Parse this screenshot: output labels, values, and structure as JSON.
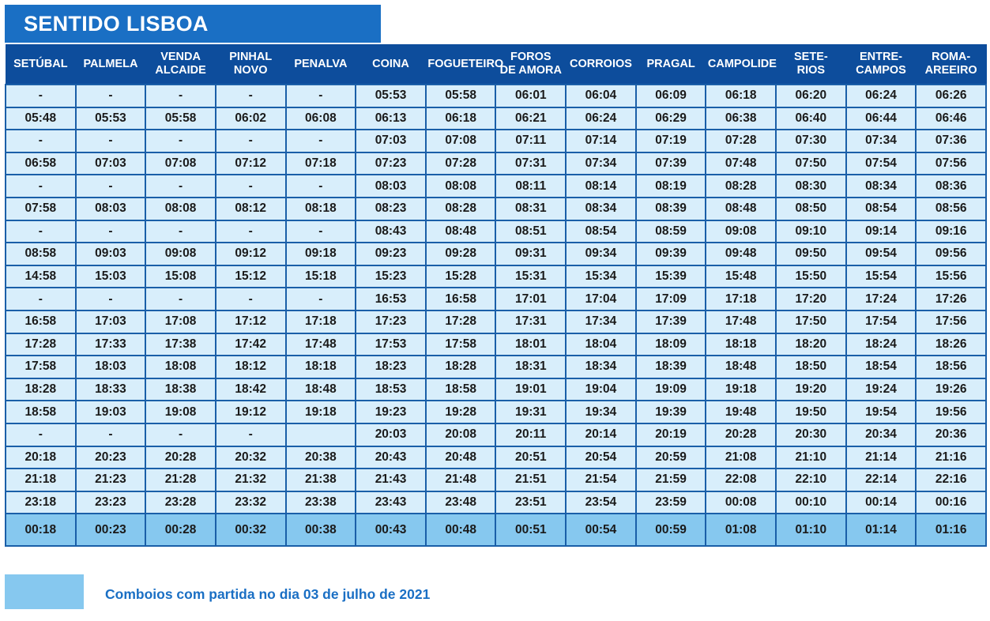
{
  "title": "SENTIDO LISBOA",
  "columns": [
    [
      "SETÚBAL"
    ],
    [
      "PALMELA"
    ],
    [
      "VENDA",
      "ALCAIDE"
    ],
    [
      "PINHAL",
      "NOVO"
    ],
    [
      "PENALVA"
    ],
    [
      "COINA"
    ],
    [
      "FOGUETEIRO"
    ],
    [
      "FOROS",
      "DE AMORA"
    ],
    [
      "CORROIOS"
    ],
    [
      "PRAGAL"
    ],
    [
      "CAMPOLIDE"
    ],
    [
      "SETE-",
      "RIOS"
    ],
    [
      "ENTRE-",
      "CAMPOS"
    ],
    [
      "ROMA-",
      "AREEIRO"
    ]
  ],
  "rows": [
    [
      "-",
      "-",
      "-",
      "-",
      "-",
      "05:53",
      "05:58",
      "06:01",
      "06:04",
      "06:09",
      "06:18",
      "06:20",
      "06:24",
      "06:26"
    ],
    [
      "05:48",
      "05:53",
      "05:58",
      "06:02",
      "06:08",
      "06:13",
      "06:18",
      "06:21",
      "06:24",
      "06:29",
      "06:38",
      "06:40",
      "06:44",
      "06:46"
    ],
    [
      "-",
      "-",
      "-",
      "-",
      "-",
      "07:03",
      "07:08",
      "07:11",
      "07:14",
      "07:19",
      "07:28",
      "07:30",
      "07:34",
      "07:36"
    ],
    [
      "06:58",
      "07:03",
      "07:08",
      "07:12",
      "07:18",
      "07:23",
      "07:28",
      "07:31",
      "07:34",
      "07:39",
      "07:48",
      "07:50",
      "07:54",
      "07:56"
    ],
    [
      "-",
      "-",
      "-",
      "-",
      "-",
      "08:03",
      "08:08",
      "08:11",
      "08:14",
      "08:19",
      "08:28",
      "08:30",
      "08:34",
      "08:36"
    ],
    [
      "07:58",
      "08:03",
      "08:08",
      "08:12",
      "08:18",
      "08:23",
      "08:28",
      "08:31",
      "08:34",
      "08:39",
      "08:48",
      "08:50",
      "08:54",
      "08:56"
    ],
    [
      "-",
      "-",
      "-",
      "-",
      "-",
      "08:43",
      "08:48",
      "08:51",
      "08:54",
      "08:59",
      "09:08",
      "09:10",
      "09:14",
      "09:16"
    ],
    [
      "08:58",
      "09:03",
      "09:08",
      "09:12",
      "09:18",
      "09:23",
      "09:28",
      "09:31",
      "09:34",
      "09:39",
      "09:48",
      "09:50",
      "09:54",
      "09:56"
    ],
    [
      "14:58",
      "15:03",
      "15:08",
      "15:12",
      "15:18",
      "15:23",
      "15:28",
      "15:31",
      "15:34",
      "15:39",
      "15:48",
      "15:50",
      "15:54",
      "15:56"
    ],
    [
      "-",
      "-",
      "-",
      "-",
      "-",
      "16:53",
      "16:58",
      "17:01",
      "17:04",
      "17:09",
      "17:18",
      "17:20",
      "17:24",
      "17:26"
    ],
    [
      "16:58",
      "17:03",
      "17:08",
      "17:12",
      "17:18",
      "17:23",
      "17:28",
      "17:31",
      "17:34",
      "17:39",
      "17:48",
      "17:50",
      "17:54",
      "17:56"
    ],
    [
      "17:28",
      "17:33",
      "17:38",
      "17:42",
      "17:48",
      "17:53",
      "17:58",
      "18:01",
      "18:04",
      "18:09",
      "18:18",
      "18:20",
      "18:24",
      "18:26"
    ],
    [
      "17:58",
      "18:03",
      "18:08",
      "18:12",
      "18:18",
      "18:23",
      "18:28",
      "18:31",
      "18:34",
      "18:39",
      "18:48",
      "18:50",
      "18:54",
      "18:56"
    ],
    [
      "18:28",
      "18:33",
      "18:38",
      "18:42",
      "18:48",
      "18:53",
      "18:58",
      "19:01",
      "19:04",
      "19:09",
      "19:18",
      "19:20",
      "19:24",
      "19:26"
    ],
    [
      "18:58",
      "19:03",
      "19:08",
      "19:12",
      "19:18",
      "19:23",
      "19:28",
      "19:31",
      "19:34",
      "19:39",
      "19:48",
      "19:50",
      "19:54",
      "19:56"
    ],
    [
      "-",
      "-",
      "-",
      "-",
      "",
      "20:03",
      "20:08",
      "20:11",
      "20:14",
      "20:19",
      "20:28",
      "20:30",
      "20:34",
      "20:36"
    ],
    [
      "20:18",
      "20:23",
      "20:28",
      "20:32",
      "20:38",
      "20:43",
      "20:48",
      "20:51",
      "20:54",
      "20:59",
      "21:08",
      "21:10",
      "21:14",
      "21:16"
    ],
    [
      "21:18",
      "21:23",
      "21:28",
      "21:32",
      "21:38",
      "21:43",
      "21:48",
      "21:51",
      "21:54",
      "21:59",
      "22:08",
      "22:10",
      "22:14",
      "22:16"
    ],
    [
      "23:18",
      "23:23",
      "23:28",
      "23:32",
      "23:38",
      "23:43",
      "23:48",
      "23:51",
      "23:54",
      "23:59",
      "00:08",
      "00:10",
      "00:14",
      "00:16"
    ],
    [
      "00:18",
      "00:23",
      "00:28",
      "00:32",
      "00:38",
      "00:43",
      "00:48",
      "00:51",
      "00:54",
      "00:59",
      "01:08",
      "01:10",
      "01:14",
      "01:16"
    ]
  ],
  "highlighted_rows": [
    19
  ],
  "legend": {
    "text": "Comboios com partida no dia 03 de julho de 2021"
  },
  "colors": {
    "title_bg": "#1a6fc4",
    "header_bg": "#0d4d9c",
    "cell_bg": "#d8eefb",
    "highlight_bg": "#86c8ef",
    "grid": "#1a5fa8",
    "legend_text": "#1a6fc4"
  }
}
